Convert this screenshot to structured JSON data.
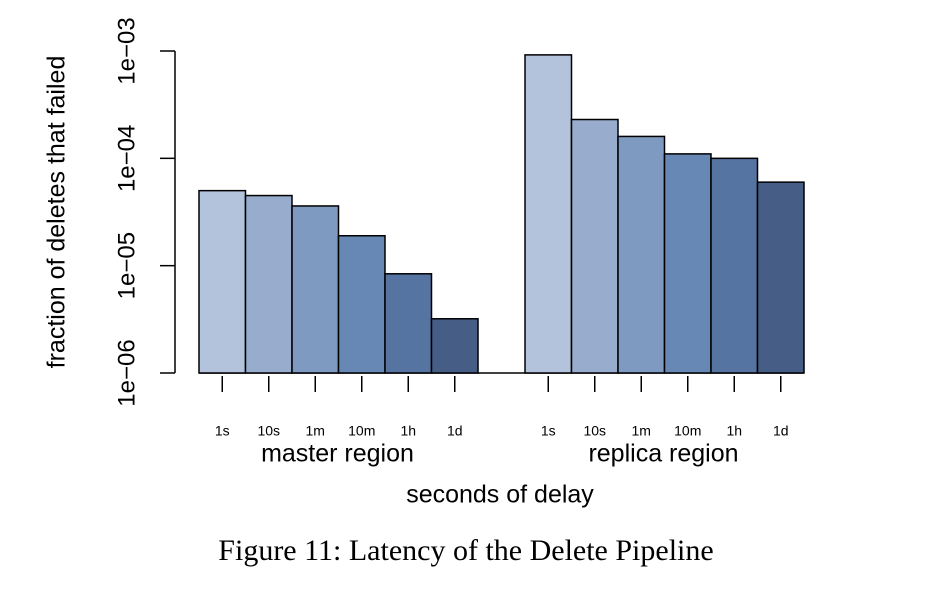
{
  "chart_data": {
    "type": "bar",
    "caption": "Figure 11: Latency of the Delete Pipeline",
    "ylabel": "fraction of deletes that failed",
    "xlabel": "seconds of delay",
    "log_scale": true,
    "ylim": [
      1e-06,
      0.001
    ],
    "yticks": [
      {
        "value": 1e-06,
        "label": "1e−06"
      },
      {
        "value": 1e-05,
        "label": "1e−05"
      },
      {
        "value": 0.0001,
        "label": "1e−04"
      },
      {
        "value": 0.001,
        "label": "1e−03"
      }
    ],
    "categories": [
      "1s",
      "10s",
      "1m",
      "10m",
      "1h",
      "1d"
    ],
    "colors": [
      "#b3c3dc",
      "#98accd",
      "#7f9ac1",
      "#6787b5",
      "#5674a1",
      "#465e86"
    ],
    "groups": [
      {
        "name": "master region",
        "values": [
          5e-05,
          4.5e-05,
          3.6e-05,
          1.9e-05,
          8.4e-06,
          3.2e-06
        ]
      },
      {
        "name": "replica region",
        "values": [
          0.00092,
          0.00023,
          0.00016,
          0.00011,
          0.0001,
          6e-05
        ]
      }
    ]
  }
}
